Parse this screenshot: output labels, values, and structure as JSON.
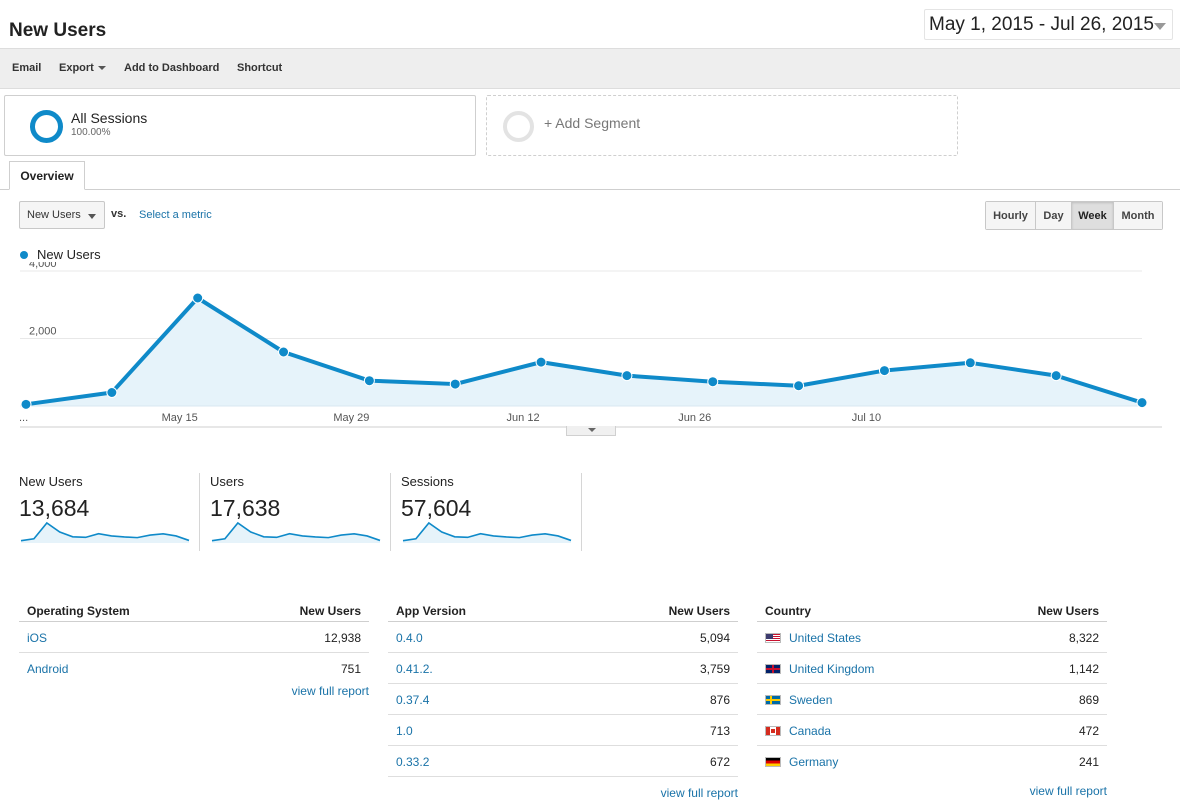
{
  "header": {
    "title": "New Users",
    "date_range": "May 1, 2015 - Jul 26, 2015"
  },
  "toolbar": {
    "email": "Email",
    "export": "Export",
    "add_to_dashboard": "Add to Dashboard",
    "shortcut": "Shortcut"
  },
  "segments": {
    "all_sessions": {
      "name": "All Sessions",
      "percent": "100.00%"
    },
    "add_segment": "+ Add Segment"
  },
  "tabs": {
    "overview": "Overview"
  },
  "metric_controls": {
    "selected_metric": "New Users",
    "vs": "vs.",
    "select_metric": "Select a metric"
  },
  "periods": [
    "Hourly",
    "Day",
    "Week",
    "Month"
  ],
  "active_period": "Week",
  "colors": {
    "accent": "#0f8ac9",
    "area_fill": "#e6f3fa",
    "link": "#1a73a8"
  },
  "chart_data": {
    "type": "line",
    "series": [
      {
        "name": "New Users",
        "values": [
          50,
          400,
          3200,
          1600,
          750,
          650,
          1300,
          900,
          720,
          600,
          1050,
          1280,
          900,
          100
        ]
      }
    ],
    "y_ticks": [
      "4,000",
      "2,000"
    ],
    "x_tick_labels": [
      "...",
      "May 15",
      "May 29",
      "Jun 12",
      "Jun 26",
      "Jul 10"
    ],
    "ylim": [
      0,
      4000
    ],
    "grid": true
  },
  "scorecards": [
    {
      "label": "New Users",
      "value": "13,684"
    },
    {
      "label": "Users",
      "value": "17,638"
    },
    {
      "label": "Sessions",
      "value": "57,604"
    }
  ],
  "tables": {
    "os": {
      "col1": "Operating System",
      "col2": "New Users",
      "rows": [
        {
          "name": "iOS",
          "value": "12,938"
        },
        {
          "name": "Android",
          "value": "751"
        }
      ],
      "full_report": "view full report"
    },
    "app_version": {
      "col1": "App Version",
      "col2": "New Users",
      "rows": [
        {
          "name": "0.4.0",
          "value": "5,094"
        },
        {
          "name": "0.41.2.",
          "value": "3,759"
        },
        {
          "name": "0.37.4",
          "value": "876"
        },
        {
          "name": "1.0",
          "value": "713"
        },
        {
          "name": "0.33.2",
          "value": "672"
        }
      ],
      "full_report": "view full report"
    },
    "country": {
      "col1": "Country",
      "col2": "New Users",
      "rows": [
        {
          "name": "United States",
          "value": "8,322",
          "flag": "us-flag-icon"
        },
        {
          "name": "United Kingdom",
          "value": "1,142",
          "flag": "uk-flag-icon"
        },
        {
          "name": "Sweden",
          "value": "869",
          "flag": "sweden-flag-icon"
        },
        {
          "name": "Canada",
          "value": "472",
          "flag": "canada-flag-icon"
        },
        {
          "name": "Germany",
          "value": "241",
          "flag": "germany-flag-icon"
        }
      ],
      "full_report": "view full report"
    }
  }
}
